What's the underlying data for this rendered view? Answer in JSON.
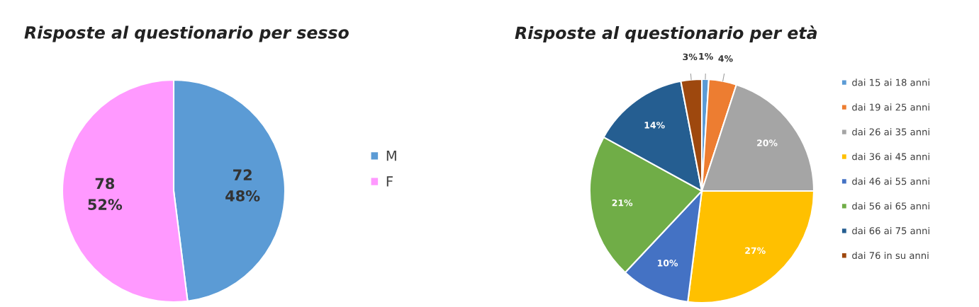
{
  "chart_data": [
    {
      "type": "pie",
      "title": "Risposte al questionario per sesso",
      "categories": [
        "M",
        "F"
      ],
      "values": [
        72,
        78
      ],
      "colors": [
        "#5b9bd5",
        "#ff99ff"
      ],
      "value_labels": [
        "72\n48%",
        "78\n52%"
      ],
      "legend": "right"
    },
    {
      "type": "pie",
      "title": "Risposte al questionario per età",
      "categories": [
        "dai 15 ai 18 anni",
        "dai 19 ai 25 anni",
        "dai 26 ai 35 anni",
        "dai 36 ai 45 anni",
        "dai 46 ai 55 anni",
        "dai 56 ai 65 anni",
        "dai 66 ai 75 anni",
        "dai 76 in su anni"
      ],
      "values": [
        1,
        4,
        20,
        27,
        10,
        21,
        14,
        3
      ],
      "colors": [
        "#5b9bd5",
        "#ed7d31",
        "#a5a5a5",
        "#ffc000",
        "#4472c4",
        "#70ad47",
        "#255e91",
        "#9e480e"
      ],
      "value_labels": [
        "1%",
        "4%",
        "20%",
        "27%",
        "10%",
        "21%",
        "14%",
        "3%"
      ],
      "legend": "right"
    }
  ]
}
